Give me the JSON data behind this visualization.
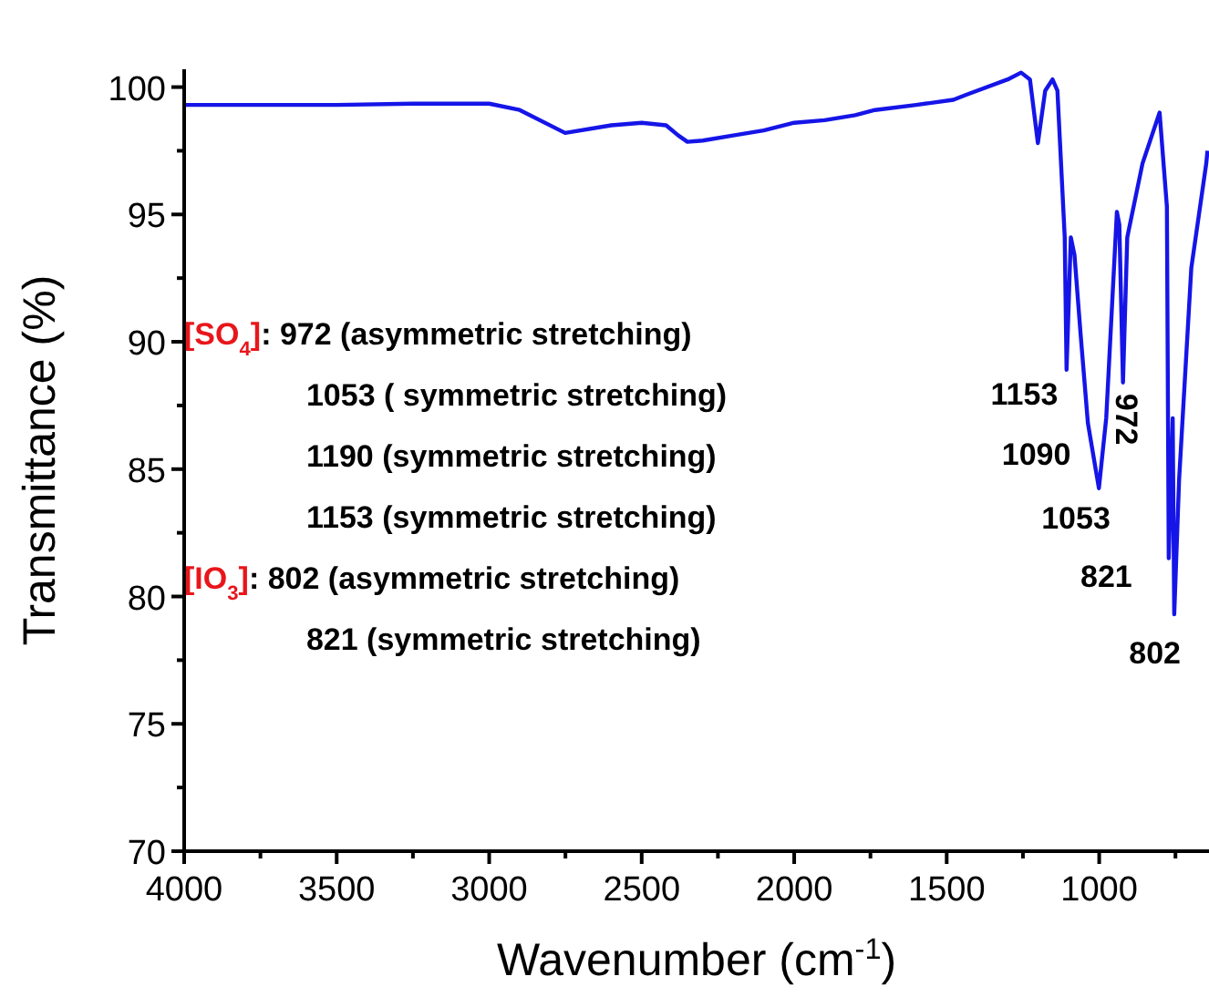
{
  "chart_data": {
    "type": "line",
    "xlabel": "Wavenumber (cm$^{-1}$)",
    "ylabel": "Transmittance (%)",
    "xlim": [
      4000,
      640
    ],
    "ylim": [
      70,
      100.7
    ],
    "xticks": [
      4000,
      {
        "value": 3750,
        "label": null
      },
      3500,
      {
        "value": 3250,
        "label": null
      },
      3000,
      {
        "value": 2750,
        "label": null
      },
      2500,
      {
        "value": 2250,
        "label": null
      },
      2000,
      {
        "value": 1750,
        "label": null
      },
      1500,
      {
        "value": 1250,
        "label": null
      },
      1000,
      {
        "value": 750,
        "label": null
      }
    ],
    "yticks": [
      70,
      {
        "value": 72.5,
        "label": null
      },
      75,
      {
        "value": 77.5,
        "label": null
      },
      80,
      {
        "value": 82.5,
        "label": null
      },
      85,
      {
        "value": 87.5,
        "label": null
      },
      90,
      {
        "value": 92.5,
        "label": null
      },
      95,
      {
        "value": 97.5,
        "label": null
      },
      100
    ],
    "grid": false,
    "marker": "none",
    "line_style": "solid",
    "series": [
      {
        "color": "#1515e8",
        "x": [
          4000,
          3750,
          3500,
          3250,
          3000,
          2900,
          2751,
          2600,
          2500,
          2420,
          2380,
          2350,
          2300,
          2200,
          2100,
          2000,
          1900,
          1800,
          1735,
          1600,
          1478,
          1436,
          1300,
          1256,
          1227,
          1201,
          1177,
          1153,
          1137,
          1113,
          1107,
          1093,
          1081,
          1061,
          1037,
          1001,
          977,
          942,
          934,
          922,
          908,
          858,
          802,
          778,
          772,
          759,
          754,
          738,
          698,
          649,
          645
        ],
        "values": [
          99.3,
          99.3,
          99.3,
          99.35,
          99.35,
          99.1,
          98.2,
          98.5,
          98.6,
          98.5,
          98.1,
          97.85,
          97.9,
          98.1,
          98.3,
          98.6,
          98.7,
          98.9,
          99.1,
          99.3,
          99.5,
          99.7,
          100.3,
          100.57,
          100.3,
          97.8,
          99.86,
          100.3,
          99.86,
          94.1,
          88.9,
          94.1,
          93.4,
          90.3,
          86.8,
          84.25,
          87.0,
          95.1,
          94.6,
          88.4,
          94.1,
          97.0,
          99.0,
          95.3,
          81.5,
          87.0,
          79.3,
          84.6,
          92.9,
          97.0,
          97.5
        ]
      }
    ],
    "annotations": [
      "[SO$_{4}$]: 972 (asymmetric stretching)",
      "1053 ( symmetric stretching)",
      "1190 (symmetric stretching)",
      "1153 (symmetric stretching)",
      "[IO$_{3}$]: 802 (asymmetric stretching)",
      "821 (symmetric stretching)",
      "1153",
      "1090",
      "1053",
      "972",
      "821",
      "802"
    ]
  }
}
